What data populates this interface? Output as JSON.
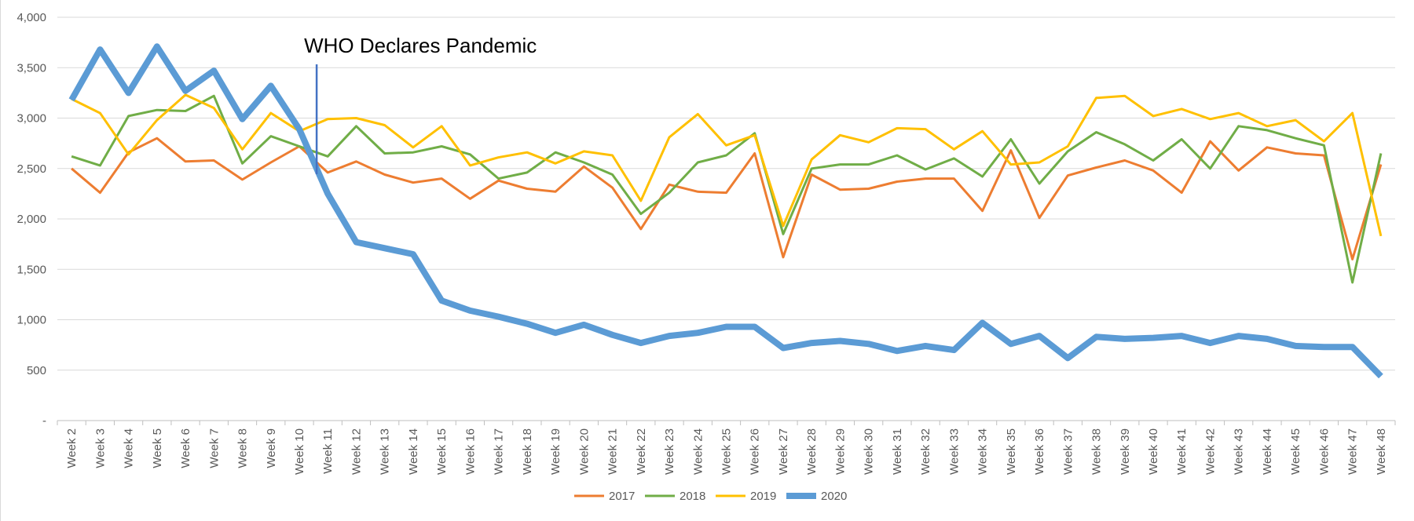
{
  "chart_data": {
    "type": "line",
    "title": "",
    "xlabel": "",
    "ylabel": "",
    "ylim": [
      0,
      4000
    ],
    "grid": true,
    "legend_position": "bottom",
    "y_ticks": [
      {
        "value": 0,
        "label": "-"
      },
      {
        "value": 500,
        "label": "500"
      },
      {
        "value": 1000,
        "label": "1,000"
      },
      {
        "value": 1500,
        "label": "1,500"
      },
      {
        "value": 2000,
        "label": "2,000"
      },
      {
        "value": 2500,
        "label": "2,500"
      },
      {
        "value": 3000,
        "label": "3,000"
      },
      {
        "value": 3500,
        "label": "3,500"
      },
      {
        "value": 4000,
        "label": "4,000"
      }
    ],
    "categories": [
      "Week 2",
      "Week 3",
      "Week 4",
      "Week 5",
      "Week 6",
      "Week 7",
      "Week 8",
      "Week 9",
      "Week 10",
      "Week 11",
      "Week 12",
      "Week 13",
      "Week 14",
      "Week 15",
      "Week 16",
      "Week 17",
      "Week 18",
      "Week 19",
      "Week 20",
      "Week 21",
      "Week 22",
      "Week 23",
      "Week 24",
      "Week 25",
      "Week 26",
      "Week 27",
      "Week 28",
      "Week 29",
      "Week 30",
      "Week 31",
      "Week 32",
      "Week 33",
      "Week 34",
      "Week 35",
      "Week 36",
      "Week 37",
      "Week 38",
      "Week 39",
      "Week 40",
      "Week 41",
      "Week 42",
      "Week 43",
      "Week 44",
      "Week 45",
      "Week 46",
      "Week 47",
      "Week 48"
    ],
    "series": [
      {
        "name": "2017",
        "color": "#ED7D31",
        "values": [
          2500,
          2260,
          2660,
          2800,
          2570,
          2580,
          2390,
          2560,
          2720,
          2460,
          2570,
          2440,
          2360,
          2400,
          2200,
          2380,
          2300,
          2270,
          2520,
          2310,
          1900,
          2340,
          2270,
          2260,
          2650,
          1620,
          2440,
          2290,
          2300,
          2370,
          2400,
          2400,
          2080,
          2680,
          2010,
          2430,
          2510,
          2580,
          2480,
          2260,
          2770,
          2480,
          2710,
          2650,
          2630,
          1600,
          2540
        ]
      },
      {
        "name": "2018",
        "color": "#70AD47",
        "values": [
          2620,
          2530,
          3020,
          3080,
          3070,
          3220,
          2550,
          2820,
          2720,
          2620,
          2920,
          2650,
          2660,
          2720,
          2640,
          2400,
          2460,
          2660,
          2560,
          2440,
          2050,
          2260,
          2560,
          2630,
          2850,
          1850,
          2500,
          2540,
          2540,
          2630,
          2490,
          2600,
          2420,
          2790,
          2350,
          2670,
          2860,
          2740,
          2580,
          2790,
          2500,
          2920,
          2880,
          2800,
          2730,
          1370,
          2650
        ]
      },
      {
        "name": "2019",
        "color": "#FFC000",
        "values": [
          3190,
          3050,
          2640,
          2980,
          3230,
          3100,
          2690,
          3050,
          2870,
          2990,
          3000,
          2930,
          2710,
          2920,
          2530,
          2610,
          2660,
          2550,
          2670,
          2630,
          2180,
          2810,
          3040,
          2730,
          2830,
          1930,
          2590,
          2830,
          2760,
          2900,
          2890,
          2690,
          2870,
          2540,
          2560,
          2720,
          3200,
          3220,
          3020,
          3090,
          2990,
          3050,
          2920,
          2980,
          2770,
          3050,
          1830
        ]
      },
      {
        "name": "2020",
        "color": "#5B9BD5",
        "values": [
          3180,
          3680,
          3250,
          3710,
          3270,
          3470,
          2990,
          3320,
          2890,
          2250,
          1770,
          1710,
          1650,
          1190,
          1090,
          1030,
          960,
          870,
          950,
          850,
          770,
          840,
          870,
          930,
          930,
          720,
          770,
          790,
          760,
          690,
          740,
          700,
          970,
          760,
          840,
          620,
          830,
          810,
          820,
          840,
          770,
          840,
          810,
          740,
          730,
          730,
          440
        ]
      }
    ],
    "annotations": [
      {
        "text": "WHO Declares Pandemic",
        "category": "Week 11"
      }
    ]
  }
}
